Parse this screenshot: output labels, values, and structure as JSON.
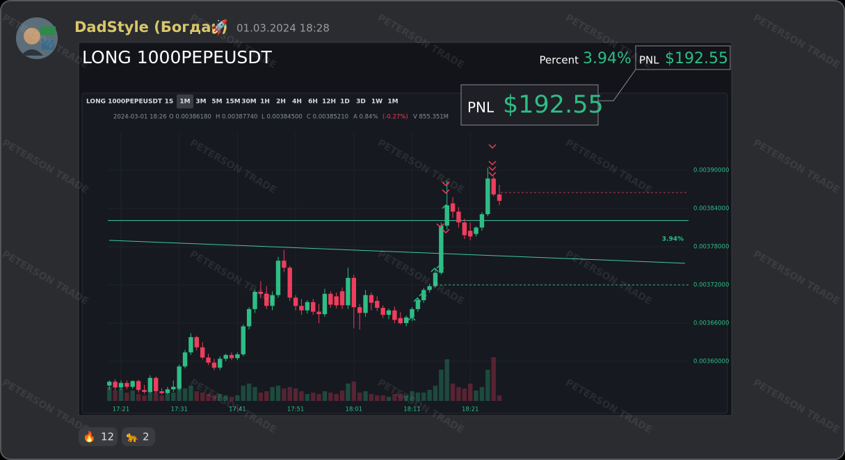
{
  "message": {
    "author": "DadStyle (Богдан)",
    "badge": "🚀",
    "timestamp": "01.03.2024 18:28"
  },
  "card": {
    "title": "LONG 1000PEPEUSDT",
    "percent_label": "Percent",
    "percent": "3.94%",
    "pnl_label": "PNL",
    "pnl": "$192.55",
    "callout_label": "PNL",
    "callout_value": "$192.55",
    "watermark": "PETERSON TRADE"
  },
  "chart_data": {
    "type": "candlestick",
    "symbol": "LONG 1000PEPEUSDT",
    "intervals": [
      "1S",
      "1M",
      "3M",
      "5M",
      "15M",
      "30M",
      "1H",
      "2H",
      "4H",
      "6H",
      "12H",
      "1D",
      "3D",
      "1W",
      "1M"
    ],
    "info": [
      "2024-03-01 18:26",
      "O 0.00386180",
      "H 0.00387740",
      "L 0.00384500",
      "C 0.00385210",
      "A 0.84%",
      "(-0.27%)",
      "V 855.351M"
    ],
    "categories": [
      null,
      null,
      "17:21",
      null,
      null,
      null,
      null,
      null,
      null,
      null,
      null,
      null,
      "17:31",
      null,
      null,
      null,
      null,
      null,
      null,
      null,
      null,
      null,
      "17:41",
      null,
      null,
      null,
      null,
      null,
      null,
      null,
      null,
      null,
      "17:51",
      null,
      null,
      null,
      null,
      null,
      null,
      null,
      null,
      null,
      "18:01",
      null,
      null,
      null,
      null,
      null,
      null,
      null,
      null,
      null,
      "18:11",
      null,
      null,
      null,
      null,
      null,
      null,
      null,
      null,
      null,
      "18:21",
      null,
      null,
      null,
      null,
      null
    ],
    "open": [
      0.003562,
      0.003568,
      0.003559,
      0.003566,
      0.00356,
      0.003569,
      0.003555,
      0.003552,
      0.003574,
      0.003553,
      0.00355,
      0.003556,
      0.003557,
      0.003592,
      0.003614,
      0.003638,
      0.003622,
      0.003606,
      0.003598,
      0.00359,
      0.003604,
      0.00361,
      0.003605,
      0.003611,
      0.003655,
      0.003682,
      0.003709,
      0.003706,
      0.003687,
      0.003704,
      0.003758,
      0.003747,
      0.0037,
      0.003687,
      0.00368,
      0.003693,
      0.003678,
      0.003674,
      0.003706,
      0.003702,
      0.00371,
      0.003688,
      0.003731,
      0.003685,
      0.003676,
      0.003704,
      0.003695,
      0.003684,
      0.003673,
      0.00368,
      0.003668,
      0.00366,
      0.003669,
      0.003682,
      0.003696,
      0.003712,
      0.003718,
      0.003739,
      0.003813,
      0.003848,
      0.003835,
      0.003818,
      0.003805,
      0.0038,
      0.00381,
      0.003831,
      0.003887,
      0.003862
    ],
    "high": [
      0.00357,
      0.003572,
      0.00357,
      0.00357,
      0.00357,
      0.003571,
      0.003563,
      0.003578,
      0.003576,
      0.003558,
      0.00356,
      0.00357,
      0.003595,
      0.003618,
      0.003644,
      0.00364,
      0.00363,
      0.003612,
      0.003604,
      0.003608,
      0.003612,
      0.003614,
      0.003614,
      0.003658,
      0.003685,
      0.003712,
      0.003726,
      0.003718,
      0.00371,
      0.003764,
      0.003775,
      0.00375,
      0.003704,
      0.003698,
      0.003696,
      0.003698,
      0.00369,
      0.003714,
      0.00371,
      0.003708,
      0.003716,
      0.003747,
      0.003736,
      0.00369,
      0.003712,
      0.003708,
      0.003702,
      0.003688,
      0.003683,
      0.003686,
      0.003677,
      0.003672,
      0.003685,
      0.0037,
      0.003715,
      0.003722,
      0.003746,
      0.003818,
      0.003884,
      0.003858,
      0.003842,
      0.003824,
      0.003818,
      0.003812,
      0.003834,
      0.003904,
      0.00389,
      0.003877
    ],
    "low": [
      0.003555,
      0.003554,
      0.003555,
      0.003556,
      0.003557,
      0.003551,
      0.003549,
      0.00355,
      0.00355,
      0.003548,
      0.003548,
      0.003552,
      0.003554,
      0.003589,
      0.00361,
      0.003617,
      0.003603,
      0.003594,
      0.003586,
      0.003586,
      0.0036,
      0.003602,
      0.003602,
      0.003608,
      0.00365,
      0.003676,
      0.003699,
      0.003682,
      0.00368,
      0.0037,
      0.00374,
      0.003695,
      0.00368,
      0.003673,
      0.003675,
      0.003673,
      0.00366,
      0.00367,
      0.003684,
      0.003683,
      0.003682,
      0.003682,
      0.003652,
      0.00365,
      0.00367,
      0.00368,
      0.003679,
      0.003668,
      0.003666,
      0.00366,
      0.003658,
      0.003655,
      0.003663,
      0.003678,
      0.003692,
      0.003708,
      0.003715,
      0.003736,
      0.003807,
      0.003825,
      0.00381,
      0.003792,
      0.00379,
      0.003796,
      0.003805,
      0.003828,
      0.003859,
      0.003845
    ],
    "close": [
      0.003568,
      0.003559,
      0.003566,
      0.00356,
      0.003569,
      0.003555,
      0.003552,
      0.003574,
      0.003553,
      0.00355,
      0.003556,
      0.00356,
      0.003592,
      0.003614,
      0.003638,
      0.003622,
      0.003606,
      0.003598,
      0.00359,
      0.003604,
      0.00361,
      0.003605,
      0.003611,
      0.003655,
      0.003682,
      0.003709,
      0.003706,
      0.003687,
      0.003704,
      0.003758,
      0.003747,
      0.0037,
      0.003687,
      0.00368,
      0.003693,
      0.003678,
      0.003674,
      0.003706,
      0.003689,
      0.003688,
      0.003688,
      0.003731,
      0.003685,
      0.003676,
      0.003704,
      0.003692,
      0.003684,
      0.003673,
      0.00368,
      0.003665,
      0.00366,
      0.003669,
      0.003682,
      0.003696,
      0.003712,
      0.003718,
      0.003739,
      0.003813,
      0.003845,
      0.003835,
      0.003818,
      0.003798,
      0.003796,
      0.00381,
      0.003831,
      0.003887,
      0.003862,
      0.003852
    ],
    "volume": [
      2140,
      1605,
      1926,
      1284,
      1605,
      1070,
      856,
      1498,
      1284,
      856,
      1070,
      1284,
      2675,
      1926,
      2354,
      1498,
      1284,
      1070,
      856,
      1070,
      856,
      642,
      856,
      2354,
      2675,
      2140,
      1284,
      1498,
      2140,
      2354,
      1926,
      2140,
      1926,
      1498,
      1070,
      1284,
      1070,
      1498,
      1284,
      1070,
      1605,
      2675,
      2996,
      1284,
      1498,
      1070,
      856,
      856,
      642,
      1070,
      1070,
      856,
      1498,
      1284,
      1284,
      1712,
      2354,
      4815,
      6420,
      2675,
      2140,
      1926,
      2675,
      1605,
      2140,
      4815,
      6741,
      855.351
    ],
    "up_color": "#2ebd85",
    "down_color": "#ef3d5e",
    "ylim": [
      0.00354,
      0.00396
    ],
    "yticks": [
      {
        "value": 0.0036,
        "label": "0.00360000"
      },
      {
        "value": 0.00366,
        "label": "0.00366000"
      },
      {
        "value": 0.00372,
        "label": "0.00372000"
      },
      {
        "value": 0.00378,
        "label": "0.00378000"
      },
      {
        "value": 0.00384,
        "label": "0.00384000"
      },
      {
        "value": 0.0039,
        "label": "0.00390000"
      }
    ],
    "levels": [
      {
        "value": 0.003821,
        "color": "#3fc9a6",
        "dashed": false
      },
      {
        "value": 0.003865,
        "color": "#c2334d",
        "dashed": true
      },
      {
        "value": 0.00372,
        "color": "#2ebd85",
        "dashed": true
      }
    ],
    "trendline": [
      0.00379,
      0.003754
    ],
    "annotation": "3.94%",
    "grid": true
  },
  "reactions": [
    {
      "emoji": "🔥",
      "count": 12
    },
    {
      "emoji": "🐆",
      "count": 2
    }
  ]
}
